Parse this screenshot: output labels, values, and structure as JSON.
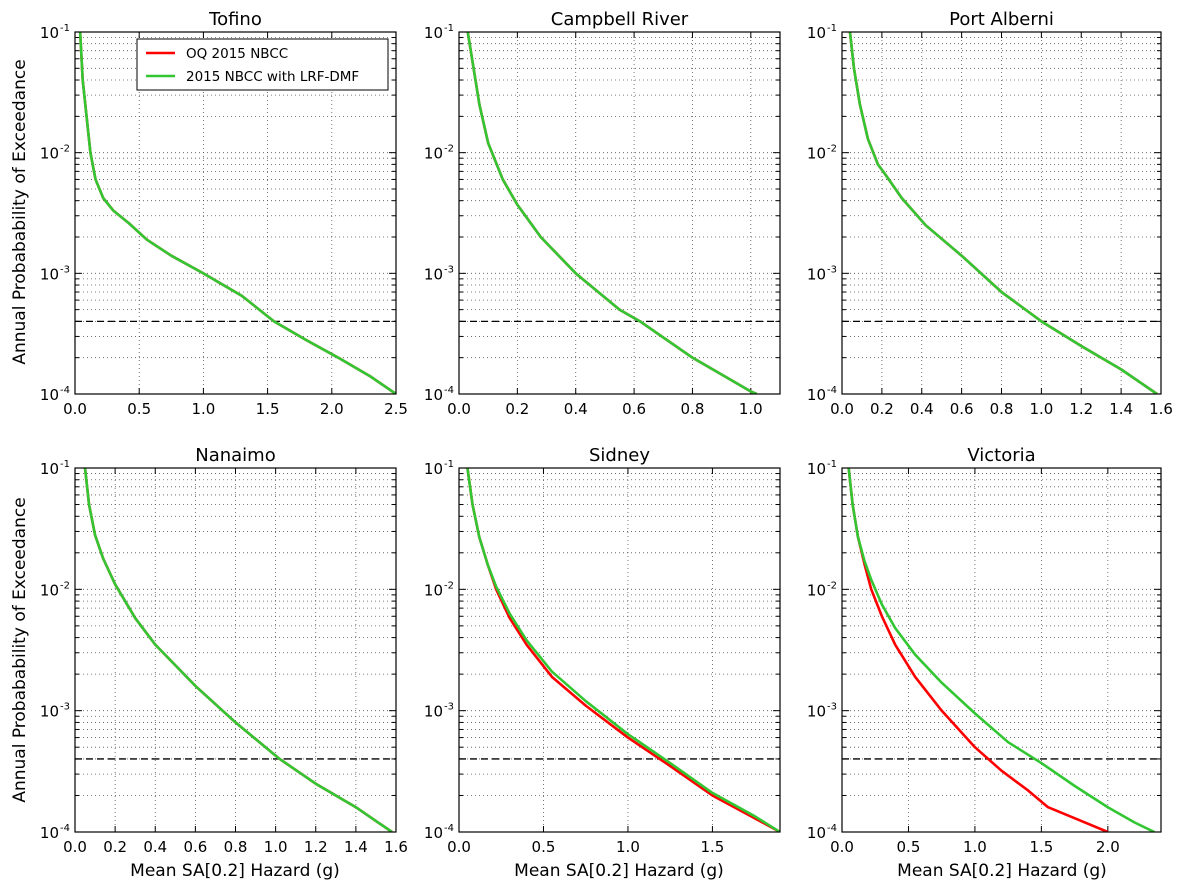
{
  "figure": {
    "ylabel": "Annual Probabability of Exceedance",
    "xlabel": "Mean SA[0.2] Hazard (g)",
    "legend": {
      "placement": "top-right of first panel"
    }
  },
  "chart_data": [
    {
      "type": "line",
      "title": "Tofino",
      "xlim": [
        0,
        2.5
      ],
      "ylim": [
        0.0001,
        0.1
      ],
      "yscale": "log",
      "grid": true,
      "show_legend": true,
      "x_ticks": [
        "0.0",
        "0.5",
        "1.0",
        "1.5",
        "2.0",
        "2.5"
      ],
      "reference_line": {
        "y": 0.0004,
        "style": "dashed"
      },
      "series": [
        {
          "name": "OQ 2015 NBCC",
          "color": "#ff0000",
          "x": [
            0.04,
            0.06,
            0.09,
            0.12,
            0.16,
            0.22,
            0.3,
            0.42,
            0.56,
            0.75,
            1.0,
            1.3,
            1.55,
            1.8,
            2.05,
            2.3,
            2.5
          ],
          "y": [
            0.1,
            0.04,
            0.02,
            0.01,
            0.006,
            0.0042,
            0.0033,
            0.0026,
            0.0019,
            0.0014,
            0.001,
            0.00065,
            0.0004,
            0.00028,
            0.0002,
            0.00014,
            0.0001
          ]
        },
        {
          "name": "2015 NBCC with LRF-DMF",
          "color": "#33c633",
          "x": [
            0.04,
            0.06,
            0.09,
            0.12,
            0.16,
            0.22,
            0.3,
            0.42,
            0.56,
            0.75,
            1.0,
            1.3,
            1.55,
            1.8,
            2.05,
            2.3,
            2.5
          ],
          "y": [
            0.1,
            0.04,
            0.02,
            0.01,
            0.006,
            0.0042,
            0.0033,
            0.0026,
            0.0019,
            0.0014,
            0.001,
            0.00065,
            0.0004,
            0.00028,
            0.0002,
            0.00014,
            0.0001
          ]
        }
      ]
    },
    {
      "type": "line",
      "title": "Campbell River",
      "xlim": [
        0,
        1.1
      ],
      "ylim": [
        0.0001,
        0.1
      ],
      "yscale": "log",
      "grid": true,
      "x_ticks": [
        "0.0",
        "0.2",
        "0.4",
        "0.6",
        "0.8",
        "1.0"
      ],
      "reference_line": {
        "y": 0.0004,
        "style": "dashed"
      },
      "series": [
        {
          "name": "OQ 2015 NBCC",
          "color": "#ff0000",
          "x": [
            0.03,
            0.05,
            0.07,
            0.1,
            0.15,
            0.2,
            0.28,
            0.4,
            0.55,
            0.62,
            0.8,
            1.0,
            1.02
          ],
          "y": [
            0.1,
            0.05,
            0.025,
            0.012,
            0.006,
            0.0037,
            0.002,
            0.001,
            0.0005,
            0.0004,
            0.0002,
            0.000105,
            0.0001
          ]
        },
        {
          "name": "2015 NBCC with LRF-DMF",
          "color": "#33c633",
          "x": [
            0.03,
            0.05,
            0.07,
            0.1,
            0.15,
            0.2,
            0.28,
            0.4,
            0.55,
            0.62,
            0.8,
            1.0,
            1.02
          ],
          "y": [
            0.1,
            0.05,
            0.025,
            0.012,
            0.006,
            0.0037,
            0.002,
            0.001,
            0.0005,
            0.0004,
            0.0002,
            0.000105,
            0.0001
          ]
        }
      ]
    },
    {
      "type": "line",
      "title": "Port Alberni",
      "xlim": [
        0,
        1.6
      ],
      "ylim": [
        0.0001,
        0.1
      ],
      "yscale": "log",
      "grid": true,
      "x_ticks": [
        "0.0",
        "0.2",
        "0.4",
        "0.6",
        "0.8",
        "1.0",
        "1.2",
        "1.4",
        "1.6"
      ],
      "reference_line": {
        "y": 0.0004,
        "style": "dashed"
      },
      "series": [
        {
          "name": "OQ 2015 NBCC",
          "color": "#ff0000",
          "x": [
            0.04,
            0.06,
            0.09,
            0.13,
            0.18,
            0.22,
            0.3,
            0.42,
            0.6,
            0.8,
            1.0,
            1.2,
            1.4,
            1.58
          ],
          "y": [
            0.1,
            0.05,
            0.025,
            0.013,
            0.008,
            0.0065,
            0.0042,
            0.0025,
            0.0014,
            0.0007,
            0.0004,
            0.00025,
            0.00016,
            0.0001
          ]
        },
        {
          "name": "2015 NBCC with LRF-DMF",
          "color": "#33c633",
          "x": [
            0.04,
            0.06,
            0.09,
            0.13,
            0.18,
            0.22,
            0.3,
            0.42,
            0.6,
            0.8,
            1.0,
            1.2,
            1.4,
            1.58
          ],
          "y": [
            0.1,
            0.05,
            0.025,
            0.013,
            0.008,
            0.0065,
            0.0042,
            0.0025,
            0.0014,
            0.0007,
            0.0004,
            0.00025,
            0.00016,
            0.0001
          ]
        }
      ]
    },
    {
      "type": "line",
      "title": "Nanaimo",
      "xlim": [
        0,
        1.6
      ],
      "ylim": [
        0.0001,
        0.1
      ],
      "yscale": "log",
      "grid": true,
      "x_ticks": [
        "0.0",
        "0.2",
        "0.4",
        "0.6",
        "0.8",
        "1.0",
        "1.2",
        "1.4",
        "1.6"
      ],
      "reference_line": {
        "y": 0.0004,
        "style": "dashed"
      },
      "series": [
        {
          "name": "OQ 2015 NBCC",
          "color": "#ff0000",
          "x": [
            0.05,
            0.07,
            0.1,
            0.14,
            0.2,
            0.3,
            0.4,
            0.6,
            0.8,
            1.02,
            1.2,
            1.4,
            1.58
          ],
          "y": [
            0.1,
            0.05,
            0.028,
            0.018,
            0.011,
            0.0058,
            0.0035,
            0.0016,
            0.0008,
            0.0004,
            0.00025,
            0.00016,
            0.0001
          ]
        },
        {
          "name": "2015 NBCC with LRF-DMF",
          "color": "#33c633",
          "x": [
            0.05,
            0.07,
            0.1,
            0.14,
            0.2,
            0.3,
            0.4,
            0.6,
            0.8,
            1.02,
            1.2,
            1.4,
            1.58
          ],
          "y": [
            0.1,
            0.05,
            0.028,
            0.018,
            0.011,
            0.0058,
            0.0035,
            0.0016,
            0.0008,
            0.0004,
            0.00025,
            0.00016,
            0.0001
          ]
        }
      ]
    },
    {
      "type": "line",
      "title": "Sidney",
      "xlim": [
        0,
        1.9
      ],
      "ylim": [
        0.0001,
        0.1
      ],
      "yscale": "log",
      "grid": true,
      "x_ticks": [
        "0.0",
        "0.5",
        "1.0",
        "1.5"
      ],
      "reference_line": {
        "y": 0.0004,
        "style": "dashed"
      },
      "series": [
        {
          "name": "OQ 2015 NBCC",
          "color": "#ff0000",
          "x": [
            0.05,
            0.08,
            0.12,
            0.17,
            0.22,
            0.3,
            0.4,
            0.55,
            0.75,
            1.0,
            1.25,
            1.5,
            1.75,
            1.9
          ],
          "y": [
            0.1,
            0.05,
            0.027,
            0.016,
            0.01,
            0.0058,
            0.0035,
            0.0019,
            0.0011,
            0.0006,
            0.00035,
            0.0002,
            0.00013,
            0.0001
          ]
        },
        {
          "name": "2015 NBCC with LRF-DMF",
          "color": "#33c633",
          "x": [
            0.05,
            0.08,
            0.12,
            0.17,
            0.22,
            0.3,
            0.4,
            0.55,
            0.75,
            1.0,
            1.25,
            1.5,
            1.75,
            1.9
          ],
          "y": [
            0.1,
            0.05,
            0.027,
            0.016,
            0.0105,
            0.0063,
            0.0038,
            0.0021,
            0.0012,
            0.00064,
            0.00037,
            0.00021,
            0.000135,
            0.0001
          ]
        }
      ]
    },
    {
      "type": "line",
      "title": "Victoria",
      "xlim": [
        0,
        2.4
      ],
      "ylim": [
        0.0001,
        0.1
      ],
      "yscale": "log",
      "grid": true,
      "x_ticks": [
        "0.0",
        "0.5",
        "1.0",
        "1.5",
        "2.0"
      ],
      "reference_line": {
        "y": 0.0004,
        "style": "dashed"
      },
      "series": [
        {
          "name": "OQ 2015 NBCC",
          "color": "#ff0000",
          "x": [
            0.05,
            0.08,
            0.12,
            0.17,
            0.22,
            0.3,
            0.4,
            0.55,
            0.75,
            1.0,
            1.2,
            1.4,
            1.55,
            1.75,
            2.0
          ],
          "y": [
            0.1,
            0.05,
            0.027,
            0.016,
            0.01,
            0.006,
            0.0035,
            0.0019,
            0.001,
            0.0005,
            0.00032,
            0.00022,
            0.00016,
            0.00013,
            0.0001
          ]
        },
        {
          "name": "2015 NBCC with LRF-DMF",
          "color": "#33c633",
          "x": [
            0.05,
            0.08,
            0.12,
            0.17,
            0.22,
            0.3,
            0.4,
            0.55,
            0.75,
            1.0,
            1.25,
            1.5,
            1.75,
            2.0,
            2.2,
            2.35
          ],
          "y": [
            0.1,
            0.05,
            0.027,
            0.017,
            0.012,
            0.0075,
            0.0048,
            0.0029,
            0.0017,
            0.00095,
            0.00055,
            0.00037,
            0.00024,
            0.00016,
            0.00012,
            0.0001
          ]
        }
      ]
    }
  ]
}
